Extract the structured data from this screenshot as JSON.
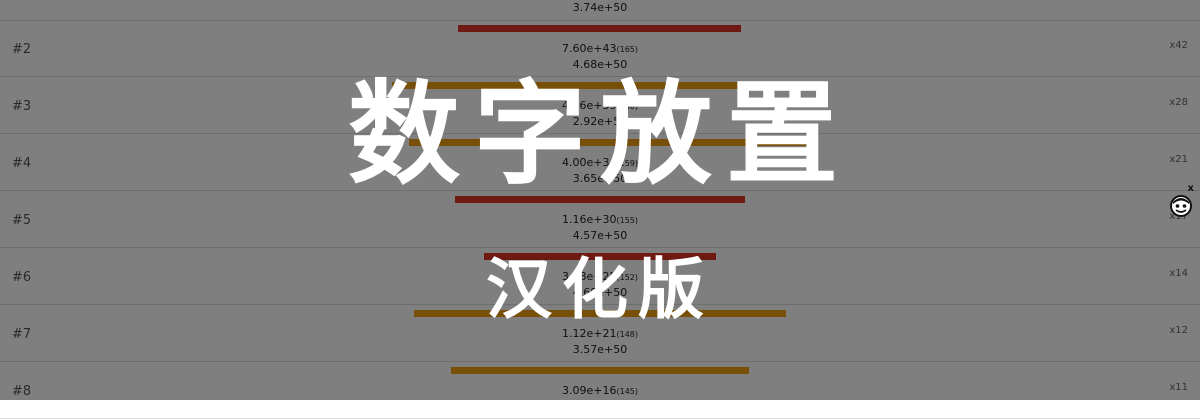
{
  "title": {
    "main": "数字放置",
    "sub": "汉化版"
  },
  "top_partial": {
    "target": "3.74e+50",
    "bar_color": "red",
    "bar_left": 458,
    "bar_width": 283
  },
  "rows": [
    {
      "rank": "#2",
      "value": "7.60e+43",
      "digits": "(165)",
      "target": "4.68e+50",
      "count": "x42",
      "bar_color": "orange",
      "bar_left": 392,
      "bar_width": 432
    },
    {
      "rank": "#3",
      "value": "4.46e+39",
      "digits": "(160)",
      "target": "2.92e+50",
      "count": "x28",
      "bar_color": "orange",
      "bar_left": 409,
      "bar_width": 398
    },
    {
      "rank": "#4",
      "value": "4.00e+34",
      "digits": "(159)",
      "target": "3.65e+50",
      "count": "x21",
      "bar_color": "red",
      "bar_left": 455,
      "bar_width": 290
    },
    {
      "rank": "#5",
      "value": "1.16e+30",
      "digits": "(155)",
      "target": "4.57e+50",
      "count": "x17",
      "bar_color": "red",
      "bar_left": 484,
      "bar_width": 232
    },
    {
      "rank": "#6",
      "value": "3.58e+25",
      "digits": "(152)",
      "target": "4.68e+50",
      "count": "x14",
      "bar_color": "orange",
      "bar_left": 414,
      "bar_width": 372
    },
    {
      "rank": "#7",
      "value": "1.12e+21",
      "digits": "(148)",
      "target": "3.57e+50",
      "count": "x12",
      "bar_color": "orange",
      "bar_left": 451,
      "bar_width": 298
    },
    {
      "rank": "#8",
      "value": "3.09e+16",
      "digits": "(145)",
      "target": "",
      "count": "x11",
      "bar_color": "",
      "bar_left": 0,
      "bar_width": 0
    }
  ],
  "side_widget": {
    "close_label": "x",
    "icon": "face-icon"
  },
  "colors": {
    "red_bar": "#dd3322",
    "orange_bar": "#ee9f11",
    "overlay": "rgba(0,0,0,0.5)",
    "title": "#ffffff"
  }
}
